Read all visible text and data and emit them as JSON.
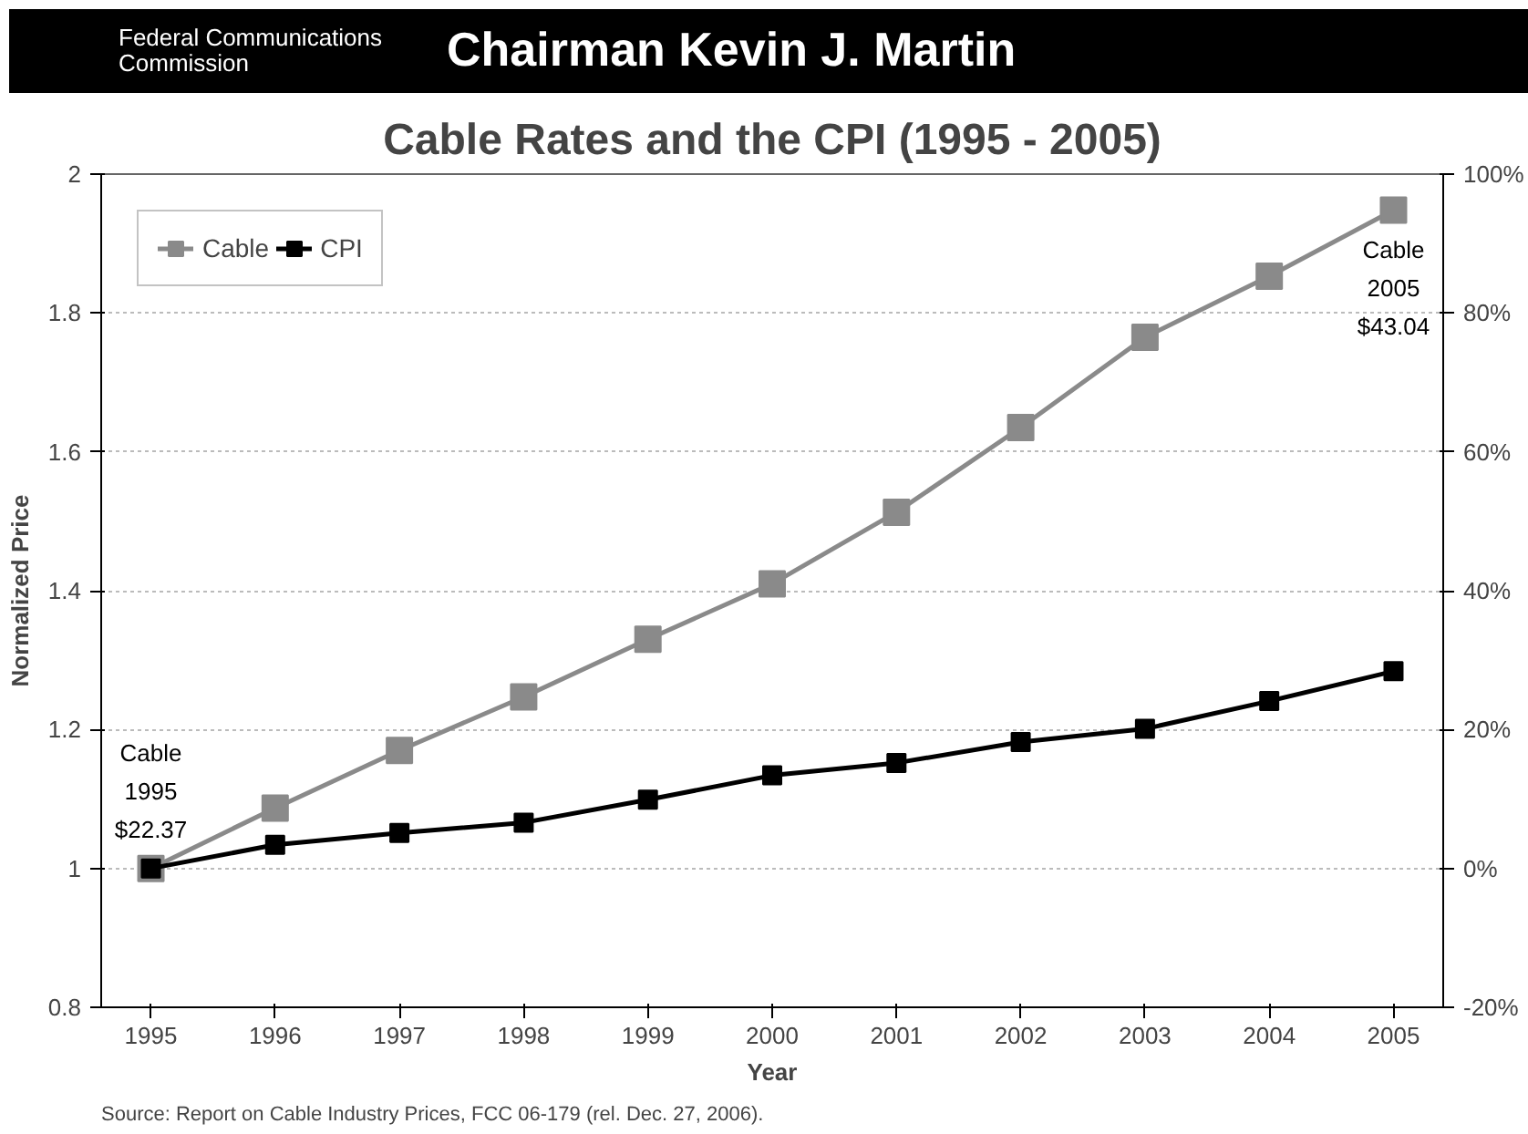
{
  "chart_data": {
    "type": "line",
    "title": "Cable Rates and the CPI (1995 - 2005)",
    "xlabel": "Year",
    "ylabel": "Normalized Price",
    "x": [
      1995,
      1996,
      1997,
      1998,
      1999,
      2000,
      2001,
      2002,
      2003,
      2004,
      2005
    ],
    "series": [
      {
        "name": "Cable",
        "color": "#8a8a8a",
        "values": [
          1.0,
          1.087,
          1.17,
          1.247,
          1.33,
          1.41,
          1.513,
          1.635,
          1.765,
          1.853,
          1.948
        ]
      },
      {
        "name": "CPI",
        "color": "#000000",
        "values": [
          1.0,
          1.034,
          1.051,
          1.066,
          1.099,
          1.134,
          1.152,
          1.182,
          1.201,
          1.241,
          1.284
        ]
      }
    ],
    "xlim": [
      1994.6,
      2005.4
    ],
    "xticks": [
      1995,
      1996,
      1997,
      1998,
      1999,
      2000,
      2001,
      2002,
      2003,
      2004,
      2005
    ],
    "ylim": [
      0.8,
      2
    ],
    "yticks": [
      0.8,
      1,
      1.2,
      1.4,
      1.6,
      1.8,
      2
    ],
    "y2lim": [
      -20,
      100
    ],
    "y2ticks": [
      {
        "value": -20,
        "label": "-20%"
      },
      {
        "value": 0,
        "label": "0%"
      },
      {
        "value": 20,
        "label": "20%"
      },
      {
        "value": 40,
        "label": "40%"
      },
      {
        "value": 60,
        "label": "60%"
      },
      {
        "value": 80,
        "label": "80%"
      },
      {
        "value": 100,
        "label": "100%"
      }
    ],
    "grid": "y",
    "legend": "top left",
    "marker": "square",
    "line_style": "solid",
    "annotations": [
      "Federal Communications Commission",
      "Chairman Kevin J. Martin",
      {
        "text": "Cable\n1995\n$22.37",
        "x": 1995,
        "y": 1.0
      },
      {
        "text": "Cable\n2005\n$43.04",
        "x": 2005,
        "y": 1.948
      },
      "Source: Report on Cable Industry Prices, FCC 06-179 (rel. Dec. 27, 2006)."
    ]
  }
}
